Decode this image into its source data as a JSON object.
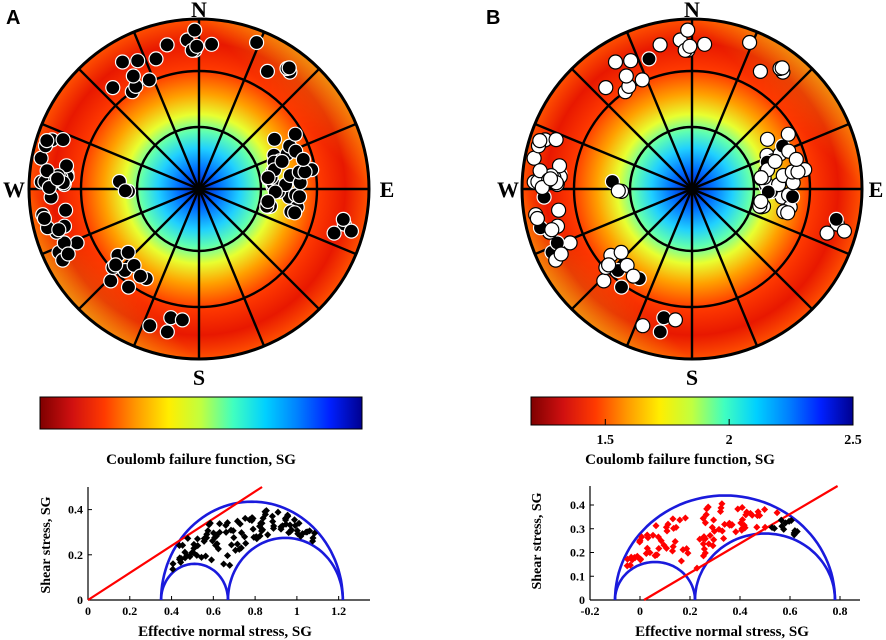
{
  "chart_data": [
    {
      "type": "polar_stereonet",
      "panel_label": "A",
      "compass": {
        "north": "N",
        "east": "E",
        "south": "S",
        "west": "W"
      },
      "max_value_direction": "SW-NE",
      "open_fraction": 0.0
    },
    {
      "type": "polar_stereonet",
      "panel_label": "B",
      "compass": {
        "north": "N",
        "east": "E",
        "south": "S",
        "west": "W"
      },
      "max_value_direction": "SW-NE",
      "open_fraction": 0.85
    },
    {
      "type": "colorbar",
      "panel": "A",
      "label": "Coulomb failure function, SG",
      "ticks": []
    },
    {
      "type": "colorbar",
      "panel": "B",
      "label": "Coulomb failure function, SG",
      "range": [
        1.2,
        2.5
      ],
      "ticks": [
        "1.5",
        "2",
        "2.5"
      ],
      "tick_values": [
        1.5,
        2.0,
        2.5
      ]
    },
    {
      "type": "scatter",
      "panel": "A",
      "xlabel": "Effective normal stress, SG",
      "ylabel": "Shear stress, SG",
      "xlim": [
        0,
        1.35
      ],
      "ylim": [
        0,
        0.5
      ],
      "xticks": [
        "0",
        "0.2",
        "0.4",
        "0.6",
        "0.8",
        "1",
        "1.2"
      ],
      "xtick_values": [
        0,
        0.2,
        0.4,
        0.6,
        0.8,
        1.0,
        1.2
      ],
      "yticks": [
        "0",
        "0.2",
        "0.4"
      ],
      "ytick_values": [
        0,
        0.2,
        0.4
      ],
      "mohr_circle_bounds": [
        0.35,
        0.52,
        0.67,
        1.22
      ],
      "failure_line": {
        "intercept": 0,
        "slope": 0.6
      },
      "marker_color": "#000000",
      "red_marker_color": "#ff0000"
    },
    {
      "type": "scatter",
      "panel": "B",
      "xlabel": "Effective normal stress, SG",
      "ylabel": "Shear stress, SG",
      "xlim": [
        -0.2,
        0.88
      ],
      "ylim": [
        0,
        0.48
      ],
      "xticks": [
        "-0.2",
        "0",
        "0.2",
        "0.4",
        "0.6",
        "0.8"
      ],
      "xtick_values": [
        -0.2,
        0,
        0.2,
        0.4,
        0.6,
        0.8
      ],
      "yticks": [
        "0",
        "0.1",
        "0.2",
        "0.3",
        "0.4"
      ],
      "ytick_values": [
        0,
        0.1,
        0.2,
        0.3,
        0.4
      ],
      "mohr_circle_bounds": [
        -0.1,
        0.08,
        0.22,
        0.78
      ],
      "failure_line": {
        "intercept": -0.01,
        "slope": 0.62
      },
      "marker_color": "#000000",
      "red_marker_color": "#ff0000"
    }
  ]
}
